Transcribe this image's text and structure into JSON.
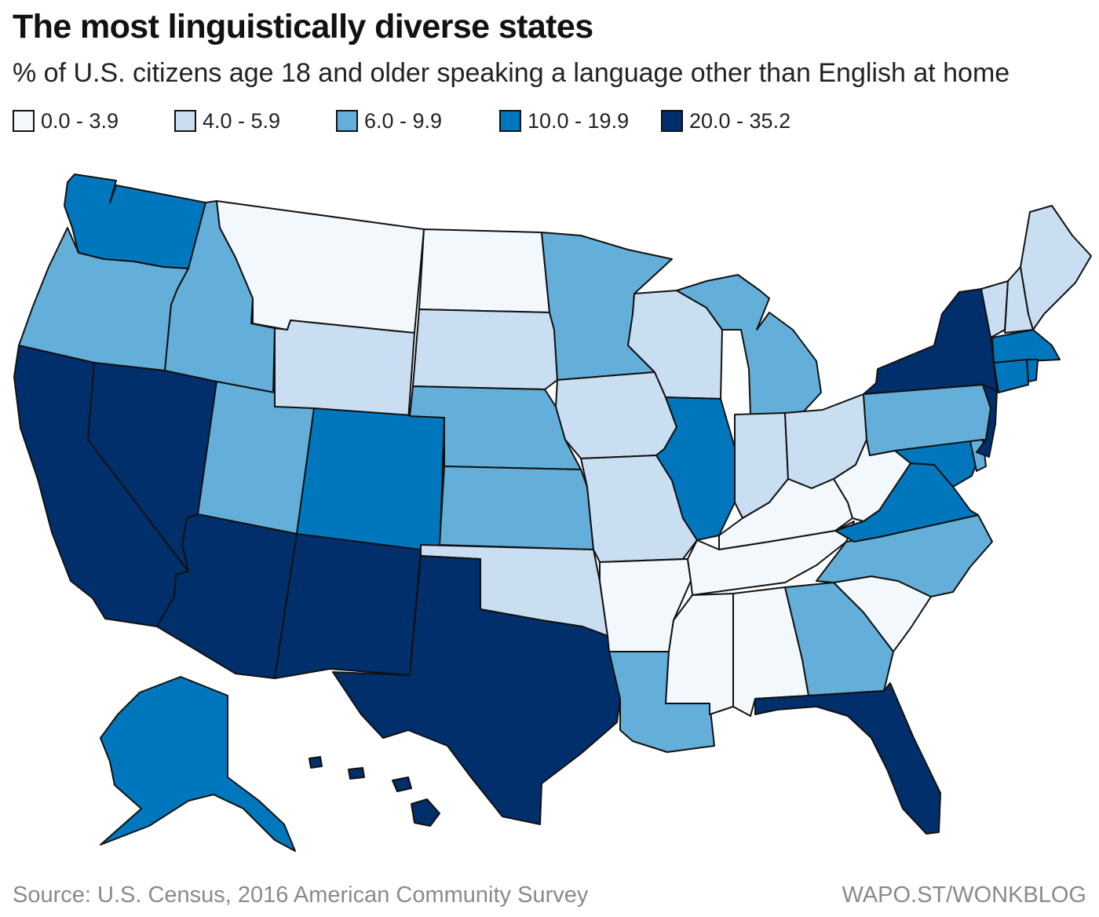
{
  "header": {
    "title": "The most linguistically diverse states",
    "subtitle": "% of U.S. citizens age 18 and older speaking a language other than English at home"
  },
  "legend": [
    {
      "label": "0.0 - 3.9",
      "color": "#f3f8fd"
    },
    {
      "label": "4.0 - 5.9",
      "color": "#c9def1"
    },
    {
      "label": "6.0 - 9.9",
      "color": "#63afd9"
    },
    {
      "label": "10.0 - 19.9",
      "color": "#0077bd"
    },
    {
      "label": "20.0 - 35.2",
      "color": "#002f6c"
    }
  ],
  "map": {
    "states": [
      {
        "name": "Washington",
        "class": "10.0 - 19.9"
      },
      {
        "name": "Oregon",
        "class": "6.0 - 9.9"
      },
      {
        "name": "California",
        "class": "20.0 - 35.2"
      },
      {
        "name": "Nevada",
        "class": "20.0 - 35.2"
      },
      {
        "name": "Idaho",
        "class": "6.0 - 9.9"
      },
      {
        "name": "Montana",
        "class": "0.0 - 3.9"
      },
      {
        "name": "Wyoming",
        "class": "4.0 - 5.9"
      },
      {
        "name": "Utah",
        "class": "6.0 - 9.9"
      },
      {
        "name": "Arizona",
        "class": "20.0 - 35.2"
      },
      {
        "name": "Colorado",
        "class": "10.0 - 19.9"
      },
      {
        "name": "New Mexico",
        "class": "20.0 - 35.2"
      },
      {
        "name": "North Dakota",
        "class": "0.0 - 3.9"
      },
      {
        "name": "South Dakota",
        "class": "4.0 - 5.9"
      },
      {
        "name": "Nebraska",
        "class": "6.0 - 9.9"
      },
      {
        "name": "Kansas",
        "class": "6.0 - 9.9"
      },
      {
        "name": "Oklahoma",
        "class": "4.0 - 5.9"
      },
      {
        "name": "Texas",
        "class": "20.0 - 35.2"
      },
      {
        "name": "Minnesota",
        "class": "6.0 - 9.9"
      },
      {
        "name": "Iowa",
        "class": "4.0 - 5.9"
      },
      {
        "name": "Missouri",
        "class": "4.0 - 5.9"
      },
      {
        "name": "Arkansas",
        "class": "0.0 - 3.9"
      },
      {
        "name": "Louisiana",
        "class": "6.0 - 9.9"
      },
      {
        "name": "Wisconsin",
        "class": "4.0 - 5.9"
      },
      {
        "name": "Illinois",
        "class": "10.0 - 19.9"
      },
      {
        "name": "Michigan",
        "class": "6.0 - 9.9"
      },
      {
        "name": "Indiana",
        "class": "4.0 - 5.9"
      },
      {
        "name": "Ohio",
        "class": "4.0 - 5.9"
      },
      {
        "name": "Kentucky",
        "class": "0.0 - 3.9"
      },
      {
        "name": "Tennessee",
        "class": "0.0 - 3.9"
      },
      {
        "name": "Mississippi",
        "class": "0.0 - 3.9"
      },
      {
        "name": "Alabama",
        "class": "0.0 - 3.9"
      },
      {
        "name": "Georgia",
        "class": "6.0 - 9.9"
      },
      {
        "name": "Florida",
        "class": "20.0 - 35.2"
      },
      {
        "name": "South Carolina",
        "class": "0.0 - 3.9"
      },
      {
        "name": "North Carolina",
        "class": "6.0 - 9.9"
      },
      {
        "name": "Virginia",
        "class": "10.0 - 19.9"
      },
      {
        "name": "West Virginia",
        "class": "0.0 - 3.9"
      },
      {
        "name": "Pennsylvania",
        "class": "6.0 - 9.9"
      },
      {
        "name": "New York",
        "class": "20.0 - 35.2"
      },
      {
        "name": "Vermont",
        "class": "4.0 - 5.9"
      },
      {
        "name": "New Hampshire",
        "class": "4.0 - 5.9"
      },
      {
        "name": "Maine",
        "class": "4.0 - 5.9"
      },
      {
        "name": "Massachusetts",
        "class": "10.0 - 19.9"
      },
      {
        "name": "Connecticut",
        "class": "10.0 - 19.9"
      },
      {
        "name": "Rhode Island",
        "class": "10.0 - 19.9"
      },
      {
        "name": "New Jersey",
        "class": "20.0 - 35.2"
      },
      {
        "name": "Delaware",
        "class": "6.0 - 9.9"
      },
      {
        "name": "Maryland",
        "class": "10.0 - 19.9"
      },
      {
        "name": "Alaska",
        "class": "10.0 - 19.9"
      },
      {
        "name": "Hawaii",
        "class": "20.0 - 35.2"
      }
    ]
  },
  "footer": {
    "source": "Source: U.S. Census, 2016 American Community Survey",
    "credit": "WAPO.ST/WONKBLOG"
  }
}
